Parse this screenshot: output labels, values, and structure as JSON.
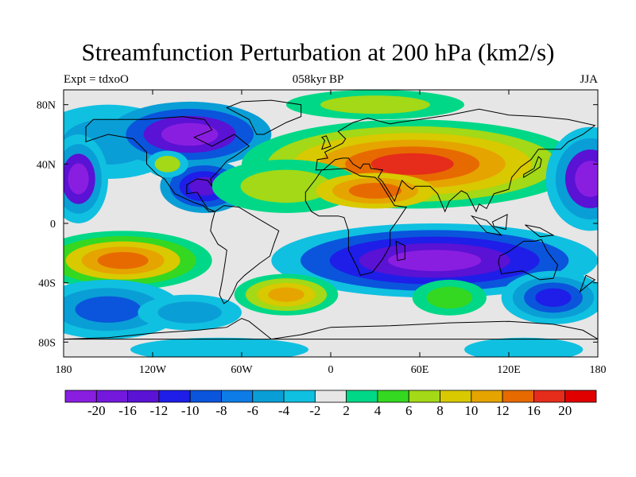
{
  "title": "Streamfunction Perturbation at 200 hPa (km2/s)",
  "left_label": "Expt = tdxoO",
  "center_label": "058kyr BP",
  "right_label": "JJA",
  "x_ticks": [
    "180",
    "120W",
    "60W",
    "0",
    "60E",
    "120E",
    "180"
  ],
  "y_ticks": [
    "80N",
    "40N",
    "0",
    "40S",
    "80S"
  ],
  "colorbar": {
    "colors": [
      "#8a1ee0",
      "#7318dc",
      "#5a12d4",
      "#1e1ee8",
      "#0a55dc",
      "#0d7ce6",
      "#0a9ed6",
      "#10c0e0",
      "#e6e6e6",
      "#00d887",
      "#35d820",
      "#a3d916",
      "#d8c900",
      "#e6a400",
      "#e76a00",
      "#e62c1a",
      "#e00000"
    ],
    "labels": [
      "-20",
      "-16",
      "-12",
      "-10",
      "-8",
      "-6",
      "-4",
      "-2",
      "2",
      "4",
      "6",
      "8",
      "10",
      "12",
      "16",
      "20"
    ]
  },
  "contour_fill": {
    "background_color": "#e6e6e6",
    "blobs": [
      {
        "lon": -150,
        "lat": 55,
        "rx": 50,
        "ry": 25,
        "colors": [
          "#10c0e0",
          "#0a9ed6"
        ]
      },
      {
        "lon": -95,
        "lat": 60,
        "rx": 55,
        "ry": 22,
        "colors": [
          "#0a9ed6",
          "#0a55dc",
          "#5a12d4",
          "#8a1ee0"
        ]
      },
      {
        "lon": -85,
        "lat": 25,
        "rx": 30,
        "ry": 18,
        "colors": [
          "#0a9ed6",
          "#0a55dc",
          "#1e1ee8",
          "#5a12d4"
        ]
      },
      {
        "lon": -110,
        "lat": 40,
        "rx": 14,
        "ry": 9,
        "colors": [
          "#10c0e0",
          "#a3d916"
        ]
      },
      {
        "lon": 55,
        "lat": 40,
        "rx": 115,
        "ry": 30,
        "colors": [
          "#00d887",
          "#a3d916",
          "#d8c900",
          "#e6a400",
          "#e76a00",
          "#e62c1a"
        ]
      },
      {
        "lon": -30,
        "lat": 25,
        "rx": 50,
        "ry": 18,
        "colors": [
          "#00d887",
          "#a3d916"
        ]
      },
      {
        "lon": 30,
        "lat": 22,
        "rx": 40,
        "ry": 12,
        "colors": [
          "#d8c900",
          "#e6a400",
          "#e76a00"
        ]
      },
      {
        "lon": 70,
        "lat": -25,
        "rx": 110,
        "ry": 25,
        "colors": [
          "#10c0e0",
          "#0a55dc",
          "#1e1ee8",
          "#5a12d4",
          "#8a1ee0"
        ]
      },
      {
        "lon": -140,
        "lat": -25,
        "rx": 60,
        "ry": 20,
        "colors": [
          "#00d887",
          "#35d820",
          "#d8c900",
          "#e6a400",
          "#e76a00"
        ]
      },
      {
        "lon": -30,
        "lat": -48,
        "rx": 35,
        "ry": 14,
        "colors": [
          "#00d887",
          "#a3d916",
          "#d8c900",
          "#e6a400"
        ]
      },
      {
        "lon": 80,
        "lat": -50,
        "rx": 25,
        "ry": 12,
        "colors": [
          "#00d887",
          "#35d820"
        ]
      },
      {
        "lon": -150,
        "lat": -58,
        "rx": 50,
        "ry": 20,
        "colors": [
          "#10c0e0",
          "#0a9ed6",
          "#0a55dc"
        ]
      },
      {
        "lon": -95,
        "lat": -60,
        "rx": 35,
        "ry": 12,
        "colors": [
          "#10c0e0",
          "#0a9ed6"
        ]
      },
      {
        "lon": 150,
        "lat": -50,
        "rx": 35,
        "ry": 18,
        "colors": [
          "#10c0e0",
          "#0a9ed6",
          "#0a55dc",
          "#1e1ee8"
        ]
      },
      {
        "lon": 175,
        "lat": 30,
        "rx": 30,
        "ry": 35,
        "colors": [
          "#10c0e0",
          "#0a9ed6",
          "#5a12d4",
          "#8a1ee0"
        ]
      },
      {
        "lon": -170,
        "lat": 30,
        "rx": 20,
        "ry": 30,
        "colors": [
          "#10c0e0",
          "#0a9ed6",
          "#5a12d4",
          "#8a1ee0"
        ]
      },
      {
        "lon": 30,
        "lat": 80,
        "rx": 60,
        "ry": 10,
        "colors": [
          "#00d887",
          "#a3d916"
        ]
      },
      {
        "lon": 130,
        "lat": -85,
        "rx": 40,
        "ry": 8,
        "colors": [
          "#10c0e0"
        ]
      },
      {
        "lon": -75,
        "lat": -85,
        "rx": 60,
        "ry": 8,
        "colors": [
          "#10c0e0"
        ]
      }
    ]
  }
}
